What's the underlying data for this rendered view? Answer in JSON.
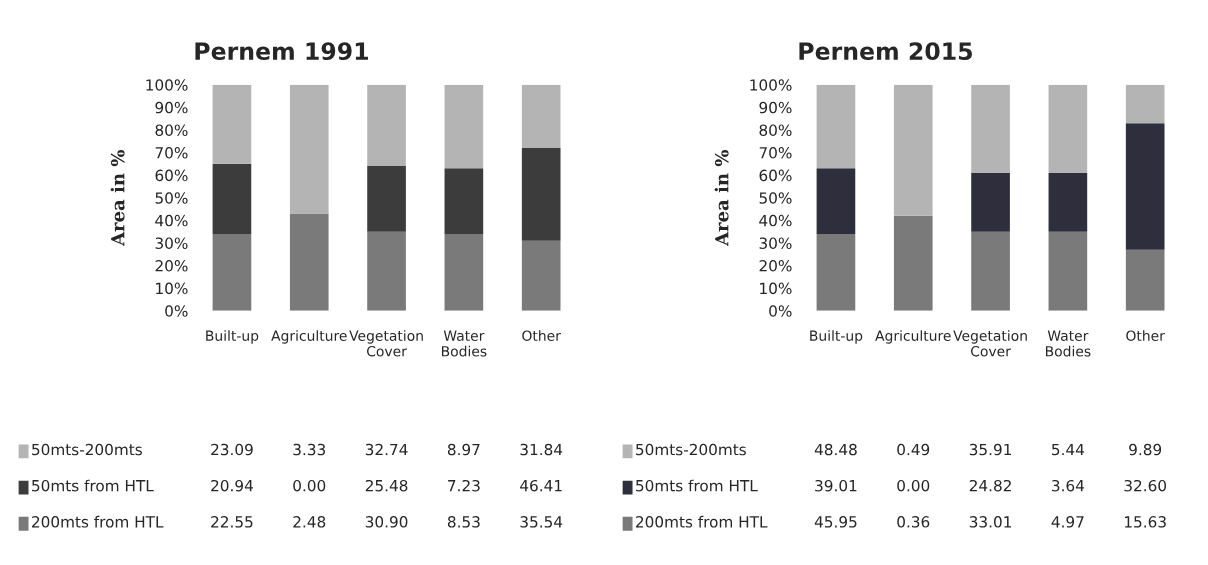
{
  "chart_data": [
    {
      "type": "bar",
      "stacked": true,
      "title": "Pernem 1991",
      "ylabel": "Area in %",
      "categories": [
        "Built-up",
        "Agriculture",
        "Vegetation Cover",
        "Water Bodies",
        "Other"
      ],
      "ylim": [
        0,
        100
      ],
      "yticks": [
        {
          "value": 0,
          "label": "0%"
        },
        {
          "value": 10,
          "label": "10%"
        },
        {
          "value": 20,
          "label": "20%"
        },
        {
          "value": 30,
          "label": "30%"
        },
        {
          "value": 40,
          "label": "40%"
        },
        {
          "value": 50,
          "label": "50%"
        },
        {
          "value": 60,
          "label": "60%"
        },
        {
          "value": 70,
          "label": "70%"
        },
        {
          "value": 80,
          "label": "80%"
        },
        {
          "value": 90,
          "label": "90%"
        },
        {
          "value": 100,
          "label": "100%"
        }
      ],
      "legend": "bottom",
      "grid": false,
      "annotations": [
        "23.09",
        "3.33",
        "32.74",
        "8.97",
        "31.84",
        "20.94",
        "0.00",
        "25.48",
        "7.23",
        "46.41",
        "22.55",
        "2.48",
        "30.90",
        "8.53",
        "35.54"
      ],
      "series": [
        {
          "name": "200mts from HTL",
          "color": "#7a7a7a",
          "values": [
            34,
            43,
            35,
            34,
            31
          ]
        },
        {
          "name": "50mts from HTL",
          "color": "#3c3c3c",
          "values": [
            31,
            0,
            29,
            29,
            41
          ]
        },
        {
          "name": "50mts-200mts",
          "color": "#b4b4b4",
          "values": [
            35,
            57,
            36,
            37,
            28
          ]
        }
      ]
    },
    {
      "type": "bar",
      "stacked": true,
      "title": "Pernem 2015",
      "ylabel": "Area in %",
      "categories": [
        "Built-up",
        "Agriculture",
        "Vegetation Cover",
        "Water Bodies",
        "Other"
      ],
      "ylim": [
        0,
        100
      ],
      "yticks": [
        {
          "value": 0,
          "label": "0%"
        },
        {
          "value": 10,
          "label": "10%"
        },
        {
          "value": 20,
          "label": "20%"
        },
        {
          "value": 30,
          "label": "30%"
        },
        {
          "value": 40,
          "label": "40%"
        },
        {
          "value": 50,
          "label": "50%"
        },
        {
          "value": 60,
          "label": "60%"
        },
        {
          "value": 70,
          "label": "70%"
        },
        {
          "value": 80,
          "label": "80%"
        },
        {
          "value": 90,
          "label": "90%"
        },
        {
          "value": 100,
          "label": "100%"
        }
      ],
      "legend": "bottom",
      "grid": false,
      "annotations": [
        "48.48",
        "0.49",
        "35.91",
        "5.44",
        "9.89",
        "39.01",
        "0.00",
        "24.82",
        "3.64",
        "32.60",
        "45.95",
        "0.36",
        "33.01",
        "4.97",
        "15.63"
      ],
      "series": [
        {
          "name": "200mts from HTL",
          "color": "#7a7a7a",
          "values": [
            34,
            42,
            35,
            35,
            27
          ]
        },
        {
          "name": "50mts from HTL",
          "color": "#2e2e3c",
          "values": [
            29,
            0,
            26,
            26,
            56
          ]
        },
        {
          "name": "50mts-200mts",
          "color": "#b4b4b4",
          "values": [
            37,
            58,
            39,
            39,
            17
          ]
        }
      ]
    }
  ]
}
